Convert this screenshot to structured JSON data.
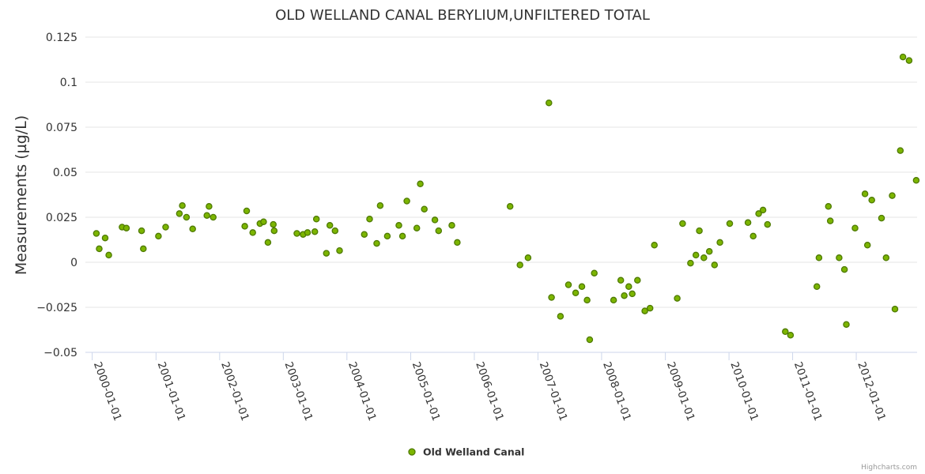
{
  "credits": "Highcharts.com",
  "colors": {
    "point_fill": "#7cb500",
    "point_stroke": "#4e7a00",
    "grid": "#e6e6e6",
    "axis": "#ccd6eb"
  },
  "chart_data": {
    "type": "scatter",
    "title": "OLD WELLAND CANAL BERYLIUM,UNFILTERED TOTAL",
    "ylabel": "Measurements (µg/L)",
    "xlabel": "",
    "ylim": [
      -0.05,
      0.125
    ],
    "yticks": [
      -0.05,
      -0.025,
      0,
      0.025,
      0.05,
      0.075,
      0.1,
      0.125
    ],
    "ytick_labels": [
      "−0.05",
      "−0.025",
      "0",
      "0.025",
      "0.05",
      "0.075",
      "0.1",
      "0.125"
    ],
    "xlim": [
      "2000-01-01",
      "2012-12-15"
    ],
    "xticks": [
      "2000-01-01",
      "2001-01-01",
      "2002-01-01",
      "2003-01-01",
      "2004-01-01",
      "2005-01-01",
      "2006-01-01",
      "2007-01-01",
      "2008-01-01",
      "2009-01-01",
      "2010-01-01",
      "2011-01-01",
      "2012-01-01"
    ],
    "grid": true,
    "legend_position": "bottom-center",
    "series": [
      {
        "name": "Old Welland Canal",
        "points": [
          [
            "2000-01-25",
            0.016
          ],
          [
            "2000-02-10",
            0.0075
          ],
          [
            "2000-03-15",
            0.0135
          ],
          [
            "2000-04-05",
            0.004
          ],
          [
            "2000-06-20",
            0.0195
          ],
          [
            "2000-07-15",
            0.019
          ],
          [
            "2000-10-10",
            0.0175
          ],
          [
            "2000-10-20",
            0.0075
          ],
          [
            "2001-01-15",
            0.0145
          ],
          [
            "2001-02-25",
            0.0195
          ],
          [
            "2001-05-15",
            0.027
          ],
          [
            "2001-06-01",
            0.0315
          ],
          [
            "2001-06-25",
            0.025
          ],
          [
            "2001-07-30",
            0.0185
          ],
          [
            "2001-10-20",
            0.026
          ],
          [
            "2001-11-01",
            0.031
          ],
          [
            "2001-11-25",
            0.025
          ],
          [
            "2002-05-25",
            0.02
          ],
          [
            "2002-06-05",
            0.0285
          ],
          [
            "2002-07-10",
            0.0165
          ],
          [
            "2002-08-20",
            0.0215
          ],
          [
            "2002-09-10",
            0.0225
          ],
          [
            "2002-10-05",
            0.011
          ],
          [
            "2002-11-05",
            0.021
          ],
          [
            "2002-11-10",
            0.0175
          ],
          [
            "2003-03-20",
            0.016
          ],
          [
            "2003-04-25",
            0.0155
          ],
          [
            "2003-05-20",
            0.0165
          ],
          [
            "2003-07-01",
            0.017
          ],
          [
            "2003-07-10",
            0.024
          ],
          [
            "2003-09-05",
            0.005
          ],
          [
            "2003-09-25",
            0.0205
          ],
          [
            "2003-10-25",
            0.0175
          ],
          [
            "2003-11-20",
            0.0065
          ],
          [
            "2004-04-10",
            0.0155
          ],
          [
            "2004-05-10",
            0.024
          ],
          [
            "2004-06-20",
            0.0105
          ],
          [
            "2004-07-10",
            0.0315
          ],
          [
            "2004-08-20",
            0.0145
          ],
          [
            "2004-10-25",
            0.0205
          ],
          [
            "2004-11-15",
            0.0145
          ],
          [
            "2004-12-10",
            0.034
          ],
          [
            "2005-02-05",
            0.019
          ],
          [
            "2005-02-25",
            0.0435
          ],
          [
            "2005-03-20",
            0.0295
          ],
          [
            "2005-05-20",
            0.0235
          ],
          [
            "2005-06-10",
            0.0175
          ],
          [
            "2005-08-25",
            0.0205
          ],
          [
            "2005-09-25",
            0.011
          ],
          [
            "2006-07-25",
            0.031
          ],
          [
            "2006-09-20",
            -0.0015
          ],
          [
            "2006-11-05",
            0.0025
          ],
          [
            "2007-03-05",
            0.0885
          ],
          [
            "2007-03-20",
            -0.0195
          ],
          [
            "2007-05-10",
            -0.03
          ],
          [
            "2007-06-25",
            -0.0125
          ],
          [
            "2007-08-05",
            -0.017
          ],
          [
            "2007-09-10",
            -0.0135
          ],
          [
            "2007-10-10",
            -0.021
          ],
          [
            "2007-10-25",
            -0.043
          ],
          [
            "2007-11-20",
            -0.006
          ],
          [
            "2008-03-10",
            -0.021
          ],
          [
            "2008-04-20",
            -0.01
          ],
          [
            "2008-05-10",
            -0.0185
          ],
          [
            "2008-06-05",
            -0.0135
          ],
          [
            "2008-06-25",
            -0.0175
          ],
          [
            "2008-07-25",
            -0.01
          ],
          [
            "2008-09-05",
            -0.027
          ],
          [
            "2008-10-05",
            -0.0255
          ],
          [
            "2008-10-30",
            0.0095
          ],
          [
            "2009-03-10",
            -0.02
          ],
          [
            "2009-04-10",
            0.0215
          ],
          [
            "2009-05-25",
            -0.0005
          ],
          [
            "2009-06-25",
            0.004
          ],
          [
            "2009-07-15",
            0.0175
          ],
          [
            "2009-08-10",
            0.0025
          ],
          [
            "2009-09-10",
            0.006
          ],
          [
            "2009-10-10",
            -0.0015
          ],
          [
            "2009-11-10",
            0.011
          ],
          [
            "2010-01-05",
            0.0215
          ],
          [
            "2010-04-20",
            0.022
          ],
          [
            "2010-05-20",
            0.0145
          ],
          [
            "2010-06-20",
            0.027
          ],
          [
            "2010-07-15",
            0.029
          ],
          [
            "2010-08-10",
            0.021
          ],
          [
            "2010-11-20",
            -0.0385
          ],
          [
            "2010-12-20",
            -0.0405
          ],
          [
            "2011-05-20",
            -0.0135
          ],
          [
            "2011-06-01",
            0.0025
          ],
          [
            "2011-07-25",
            0.031
          ],
          [
            "2011-08-05",
            0.023
          ],
          [
            "2011-09-25",
            0.0025
          ],
          [
            "2011-10-25",
            -0.004
          ],
          [
            "2011-11-05",
            -0.0345
          ],
          [
            "2011-12-25",
            0.019
          ],
          [
            "2012-02-20",
            0.038
          ],
          [
            "2012-03-05",
            0.0095
          ],
          [
            "2012-03-30",
            0.0345
          ],
          [
            "2012-05-25",
            0.0245
          ],
          [
            "2012-06-20",
            0.0025
          ],
          [
            "2012-07-25",
            0.037
          ],
          [
            "2012-08-10",
            -0.026
          ],
          [
            "2012-09-10",
            0.062
          ],
          [
            "2012-09-25",
            0.114
          ],
          [
            "2012-10-30",
            0.112
          ],
          [
            "2012-12-10",
            0.0455
          ]
        ]
      }
    ]
  }
}
